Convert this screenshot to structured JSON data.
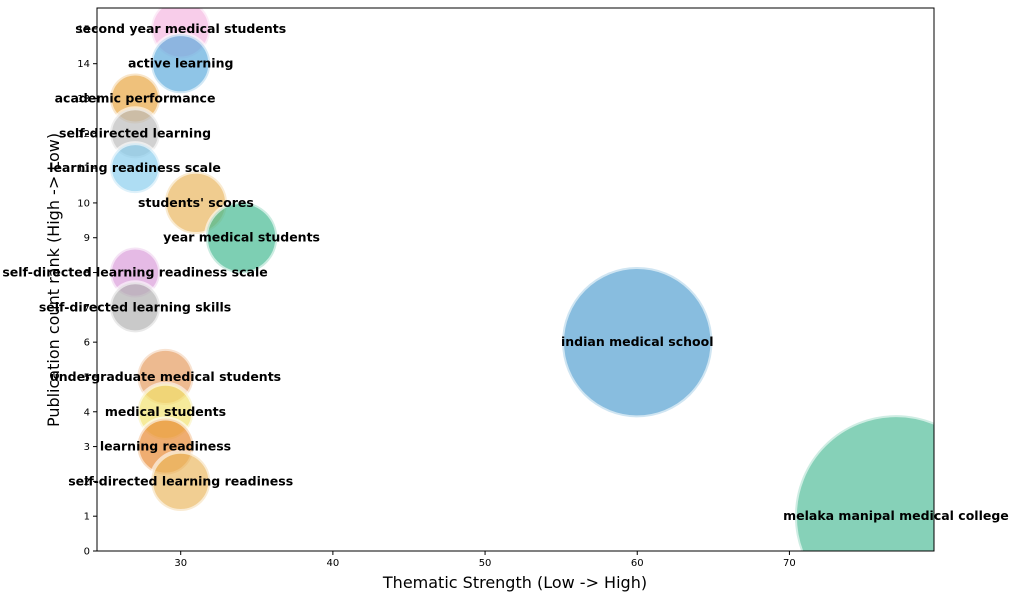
{
  "chart_data": {
    "type": "scatter",
    "title": "",
    "xlabel": "Thematic Strength (Low -> High)",
    "ylabel": "Publication count rank (High -> Low)",
    "xlim": [
      24.5,
      79.5
    ],
    "ylim": [
      0,
      15.6
    ],
    "xticks": [
      30,
      40,
      50,
      60,
      70
    ],
    "yticks": [
      0,
      1,
      2,
      3,
      4,
      5,
      6,
      7,
      8,
      9,
      10,
      11,
      12,
      13,
      14,
      15
    ],
    "grid": false,
    "legend": "none",
    "points": [
      {
        "label": "second year medical students",
        "x": 30,
        "y": 15,
        "color": "#f4b6e0"
      },
      {
        "label": "active learning",
        "x": 30,
        "y": 14,
        "color": "#5aa9dc"
      },
      {
        "label": "academic performance",
        "x": 27,
        "y": 13,
        "color": "#e8a33c"
      },
      {
        "label": "self-directed learning",
        "x": 27,
        "y": 12,
        "color": "#bbbbbb"
      },
      {
        "label": "learning readiness scale",
        "x": 27,
        "y": 11,
        "color": "#87cdee"
      },
      {
        "label": "students' scores",
        "x": 31,
        "y": 10,
        "color": "#e9b45a"
      },
      {
        "label": "year medical students",
        "x": 34,
        "y": 9,
        "color": "#3fb88f"
      },
      {
        "label": "self-directed learning readiness scale",
        "x": 27,
        "y": 8,
        "color": "#d99ad8"
      },
      {
        "label": "self-directed learning skills",
        "x": 27,
        "y": 7,
        "color": "#b0b0b0"
      },
      {
        "label": "indian medical school",
        "x": 60,
        "y": 6,
        "color": "#4f9ed0"
      },
      {
        "label": "undergraduate medical students",
        "x": 29,
        "y": 5,
        "color": "#e59a5c"
      },
      {
        "label": "medical students",
        "x": 29,
        "y": 4,
        "color": "#f2e26b"
      },
      {
        "label": "learning readiness",
        "x": 29,
        "y": 3,
        "color": "#e8862e"
      },
      {
        "label": "self-directed learning readiness",
        "x": 30,
        "y": 2,
        "color": "#ebb75e"
      },
      {
        "label": "melaka manipal medical college",
        "x": 77,
        "y": 1,
        "color": "#4dbb96"
      }
    ]
  }
}
